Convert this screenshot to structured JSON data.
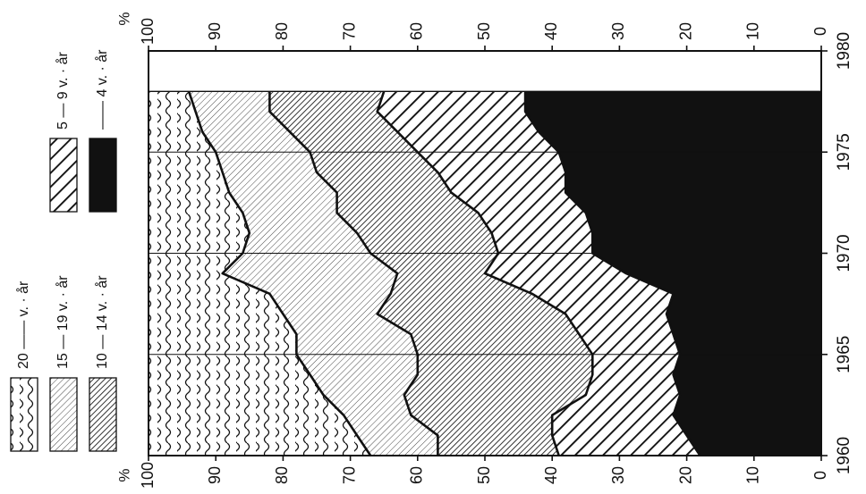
{
  "chart_data": {
    "type": "area",
    "stacked": true,
    "orientation": "rotated-90-ccw",
    "x_label": "",
    "y_label": "%",
    "x_ticks": [
      "1960",
      "1965",
      "1970",
      "1975",
      "1980"
    ],
    "y_ticks_left": [
      "100",
      "90",
      "80",
      "70",
      "60",
      "50",
      "40",
      "30",
      "20",
      "10",
      "0"
    ],
    "y_ticks_right": [
      "0",
      "10",
      "20",
      "30",
      "40",
      "50",
      "60",
      "70",
      "80",
      "90",
      "100"
    ],
    "y_unit_left": "%",
    "y_unit_right": "%",
    "xlim": [
      1960,
      1980
    ],
    "ylim": [
      0,
      100
    ],
    "legend": [
      {
        "key": "s20",
        "label": "20 —— v. · år",
        "pattern": "wavy"
      },
      {
        "key": "s15",
        "label": "15 — 19 v. · år",
        "pattern": "fine-hatch"
      },
      {
        "key": "s10",
        "label": "10 — 14 v. · år",
        "pattern": "dense-hatch"
      },
      {
        "key": "s5",
        "label": "5 — 9 v. · år",
        "pattern": "wide-hatch"
      },
      {
        "key": "s4",
        "label": "—— 4 v. · år",
        "pattern": "solid"
      }
    ],
    "x": [
      1960,
      1961,
      1962,
      1963,
      1964,
      1965,
      1966,
      1967,
      1968,
      1969,
      1970,
      1971,
      1972,
      1973,
      1974,
      1975,
      1976,
      1977,
      1978
    ],
    "boundaries": [
      {
        "name": "upper 4 v. · år",
        "values": [
          18,
          20,
          22,
          21,
          22,
          21,
          22,
          23,
          22,
          29,
          34,
          34,
          35,
          38,
          38,
          39,
          42,
          44,
          44
        ]
      },
      {
        "name": "upper 5 — 9 v. · år",
        "values": [
          39,
          40,
          40,
          35,
          34,
          34,
          36,
          38,
          43,
          50,
          48,
          49,
          51,
          55,
          57,
          60,
          63,
          66,
          65
        ]
      },
      {
        "name": "upper 10 — 14 v. · år",
        "values": [
          57,
          57,
          61,
          62,
          60,
          60,
          61,
          66,
          64,
          63,
          67,
          69,
          72,
          72,
          75,
          76,
          79,
          82,
          82
        ]
      },
      {
        "name": "upper 15 — 19 v. · år",
        "values": [
          67,
          69,
          71,
          74,
          76,
          78,
          78,
          80,
          82,
          89,
          86,
          85,
          86,
          88,
          89,
          90,
          92,
          93,
          94
        ]
      },
      {
        "name": "upper 20 —— v. · år",
        "values": [
          100,
          100,
          100,
          100,
          100,
          100,
          100,
          100,
          100,
          100,
          100,
          100,
          100,
          100,
          100,
          100,
          100,
          100,
          100
        ]
      }
    ],
    "grid_x": [
      1965,
      1970,
      1975
    ],
    "colors": {
      "ink": "#111111",
      "paper": "#ffffff"
    }
  }
}
